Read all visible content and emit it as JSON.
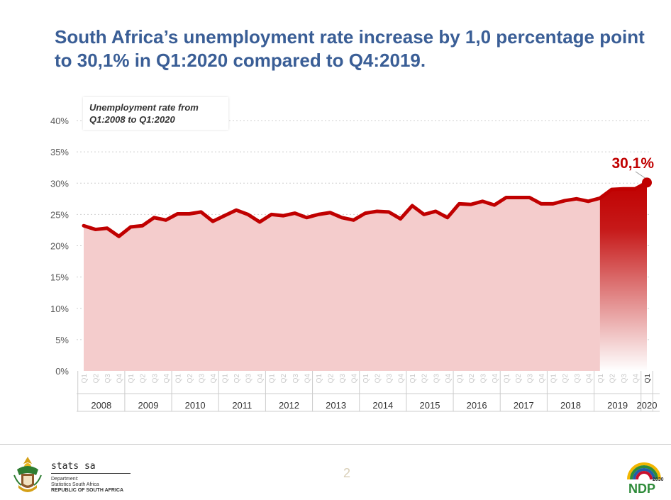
{
  "title": "South Africa’s unemployment rate increase by 1,0 percentage point to 30,1% in Q1:2020 compared to Q4:2019.",
  "note": {
    "line1": "Unemployment rate from",
    "line2": "Q1:2008 to Q1:2020"
  },
  "chart_data": {
    "type": "area",
    "ylim": [
      0,
      40
    ],
    "y_ticks": [
      0,
      5,
      10,
      15,
      20,
      25,
      30,
      35,
      40
    ],
    "y_tick_labels": [
      "0%",
      "5%",
      "10%",
      "15%",
      "20%",
      "25%",
      "30%",
      "35%",
      "40%"
    ],
    "quarter_labels": [
      "Q1",
      "Q2",
      "Q3",
      "Q4"
    ],
    "years": [
      "2008",
      "2009",
      "2010",
      "2011",
      "2012",
      "2013",
      "2014",
      "2015",
      "2016",
      "2017",
      "2018",
      "2019",
      "2020"
    ],
    "series": [
      {
        "values": [
          23.2,
          22.6,
          22.8,
          21.5,
          23.0,
          23.2,
          24.5,
          24.1,
          25.1,
          25.1,
          25.4,
          23.9,
          24.8,
          25.7,
          25.0,
          23.8,
          25.0,
          24.8,
          25.2,
          24.5,
          25.0,
          25.3,
          24.5,
          24.1,
          25.2,
          25.5,
          25.4,
          24.3,
          26.4,
          25.0,
          25.5,
          24.5,
          26.7,
          26.6,
          27.1,
          26.5,
          27.7,
          27.7,
          27.7,
          26.7,
          26.7,
          27.2,
          27.5,
          27.1,
          27.6,
          29.0,
          29.1,
          29.1,
          30.1
        ]
      }
    ],
    "highlight_label": "30,1%",
    "colors": {
      "line": "#c00000",
      "fill": "#f4cccc",
      "highlight": "#c00000",
      "title": "#3a5e96"
    }
  },
  "footer": {
    "brand": "stats sa",
    "dept_line1": "Department:",
    "dept_line2": "Statistics South Africa",
    "dept_line3": "REPUBLIC OF SOUTH AFRICA",
    "page_number": "2",
    "ndp_year": "2030",
    "ndp_label": "NDP"
  }
}
